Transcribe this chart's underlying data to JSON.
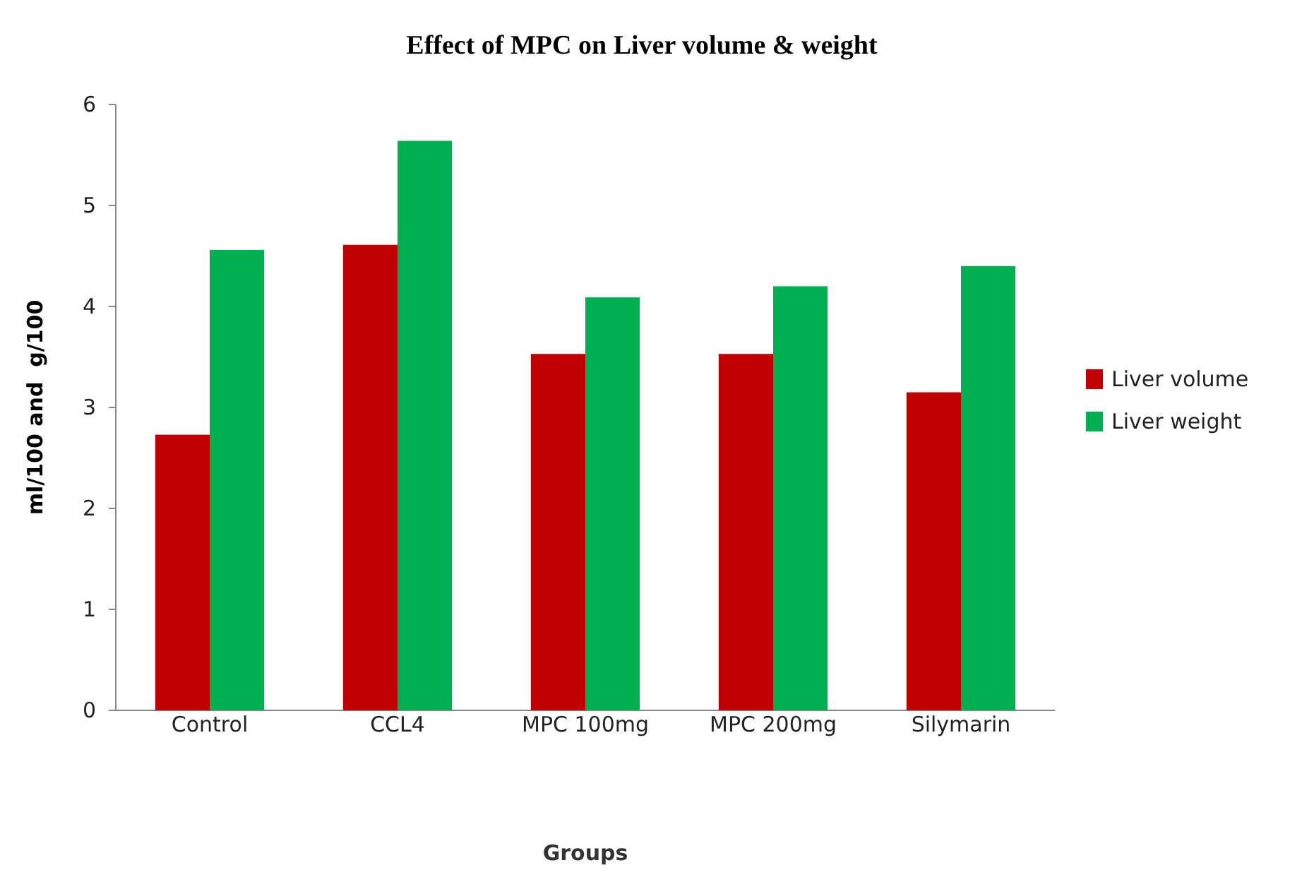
{
  "chart_data": {
    "type": "bar",
    "title": "Effect of MPC on Liver volume & weight",
    "xlabel": "Groups",
    "ylabel": "ml/100 and  g/100",
    "categories": [
      "Control",
      "CCL4",
      "MPC 100mg",
      "MPC 200mg",
      "Silymarin"
    ],
    "series": [
      {
        "name": "Liver volume",
        "color": "#c00000",
        "values": [
          2.73,
          4.61,
          3.53,
          3.53,
          3.15
        ]
      },
      {
        "name": "Liver weight",
        "color": "#00b050",
        "values": [
          4.56,
          5.64,
          4.09,
          4.2,
          4.4
        ]
      }
    ],
    "ylim": [
      0,
      6
    ],
    "yticks": [
      0,
      1,
      2,
      3,
      4,
      5,
      6
    ],
    "legend": "right"
  }
}
